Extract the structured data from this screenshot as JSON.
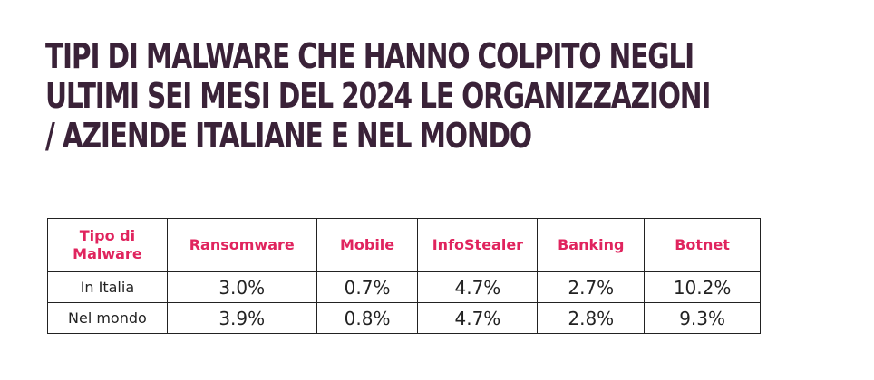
{
  "title_lines": [
    "TIPI DI MALWARE CHE HANNO COLPITO NEGLI",
    "ULTIMI SEI MESI DEL 2024 LE ORGANIZZAZIONI",
    "/ AZIENDE ITALIANE E NEL MONDO"
  ],
  "table": {
    "header": {
      "first_line1": "Tipo di",
      "first_line2": "Malware",
      "columns": [
        "Ransomware",
        "Mobile",
        "InfoStealer",
        "Banking",
        "Botnet"
      ]
    },
    "rows": [
      {
        "label": "In Italia",
        "values": [
          "3.0%",
          "0.7%",
          "4.7%",
          "2.7%",
          "10.2%"
        ]
      },
      {
        "label": "Nel mondo",
        "values": [
          "3.9%",
          "0.8%",
          "4.7%",
          "2.8%",
          "9.3%"
        ]
      }
    ]
  },
  "colors": {
    "title": "#3a2238",
    "header_text": "#e0245e",
    "cell_text": "#222222",
    "border": "#222222"
  }
}
